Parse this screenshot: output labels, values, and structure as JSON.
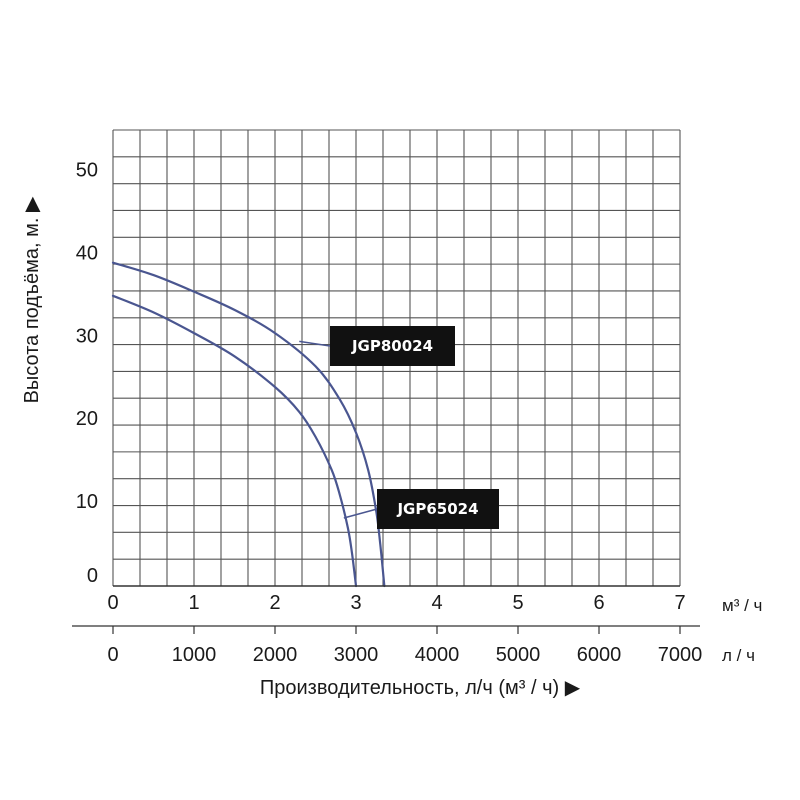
{
  "chart_data": {
    "type": "line",
    "ylabel": "Высота подъёма, м. ▶",
    "xlabel": "Производительность, л/ч (м³ / ч) ▶",
    "x_unit_top": "м³ / ч",
    "x_unit_bottom": "л / ч",
    "xlim": [
      0,
      7000
    ],
    "ylim": [
      0,
      55
    ],
    "x_ticks_top": [
      "0",
      "1",
      "2",
      "3",
      "4",
      "5",
      "6",
      "7"
    ],
    "x_ticks_bottom": [
      "0",
      "1000",
      "2000",
      "3000",
      "4000",
      "5000",
      "6000",
      "7000"
    ],
    "y_ticks": [
      "0",
      "10",
      "20",
      "30",
      "40",
      "50"
    ],
    "grid": true,
    "series": [
      {
        "name": "JGP80024",
        "color": "#4a5690",
        "x": [
          0,
          500,
          1000,
          1500,
          2000,
          2500,
          2800,
          3000,
          3150,
          3250,
          3300,
          3350
        ],
        "y": [
          39,
          37.5,
          35.5,
          33.3,
          30.5,
          26.5,
          22.5,
          18.5,
          14,
          9,
          5,
          0
        ]
      },
      {
        "name": "JGP65024",
        "color": "#4a5690",
        "x": [
          0,
          500,
          1000,
          1500,
          2000,
          2300,
          2500,
          2700,
          2800,
          2900,
          2950,
          3000
        ],
        "y": [
          35,
          33,
          30.5,
          27.7,
          24,
          21,
          18,
          14,
          11,
          7,
          4,
          0
        ]
      }
    ],
    "annotations": [
      {
        "text": "JGP80024",
        "series": "JGP80024"
      },
      {
        "text": "JGP65024",
        "series": "JGP65024"
      }
    ]
  }
}
